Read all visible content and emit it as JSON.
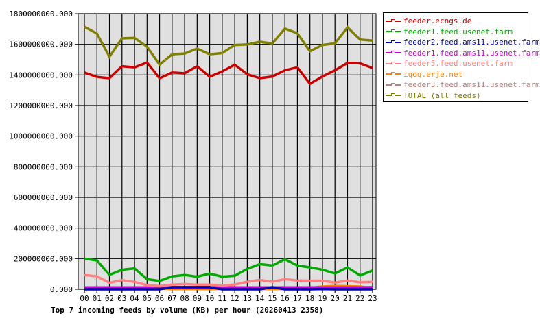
{
  "chart_data": {
    "type": "line",
    "title": "Top 7 incoming feeds by volume (KB) per hour (20260413 2358)",
    "xlabel": "",
    "ylabel": "",
    "ylim": [
      0,
      1800000000
    ],
    "grid": true,
    "legend_position": "right",
    "y_ticks": [
      "0.000",
      "200000000.000",
      "400000000.000",
      "600000000.000",
      "800000000.000",
      "1000000000.000",
      "1200000000.000",
      "1400000000.000",
      "1600000000.000",
      "1800000000.000"
    ],
    "categories": [
      "00",
      "01",
      "02",
      "03",
      "04",
      "05",
      "06",
      "07",
      "08",
      "09",
      "10",
      "11",
      "12",
      "13",
      "14",
      "15",
      "16",
      "17",
      "18",
      "19",
      "20",
      "21",
      "22",
      "23"
    ],
    "series": [
      {
        "name": "feeder.ecngs.de",
        "color": "#cc0000",
        "values": [
          1416000000,
          1387000000,
          1379000000,
          1457000000,
          1450000000,
          1481000000,
          1378000000,
          1416000000,
          1411000000,
          1457000000,
          1388000000,
          1423000000,
          1467000000,
          1404000000,
          1379000000,
          1390000000,
          1430000000,
          1450000000,
          1342000000,
          1390000000,
          1430000000,
          1479000000,
          1476000000,
          1445000000
        ]
      },
      {
        "name": "feeder1.feed.usenet.farm",
        "color": "#00aa00",
        "values": [
          200000000,
          188000000,
          94000000,
          127000000,
          136000000,
          66000000,
          54000000,
          84000000,
          93000000,
          82000000,
          102000000,
          82000000,
          88000000,
          133000000,
          164000000,
          155000000,
          196000000,
          155000000,
          143000000,
          128000000,
          103000000,
          143000000,
          90000000,
          122000000
        ]
      },
      {
        "name": "feeder2.feed.ams11.usenet.farm",
        "color": "#0000aa",
        "values": [
          0,
          0,
          0,
          0,
          0,
          0,
          0,
          14000000,
          14000000,
          14000000,
          14000000,
          0,
          0,
          0,
          0,
          14000000,
          0,
          0,
          0,
          2000000,
          0,
          0,
          0,
          0
        ]
      },
      {
        "name": "feeder1.feed.ams11.usenet.farm",
        "color": "#cc00cc",
        "values": [
          12000000,
          12000000,
          12000000,
          12000000,
          12000000,
          12000000,
          12000000,
          12000000,
          12000000,
          12000000,
          12000000,
          12000000,
          12000000,
          12000000,
          12000000,
          12000000,
          12000000,
          12000000,
          12000000,
          12000000,
          12000000,
          12000000,
          12000000,
          14000000
        ]
      },
      {
        "name": "feeder5.feed.usenet.farm",
        "color": "#ff8080",
        "values": [
          93000000,
          84000000,
          42000000,
          60000000,
          48000000,
          27000000,
          21000000,
          30000000,
          34000000,
          30000000,
          30000000,
          24000000,
          31000000,
          49000000,
          61000000,
          49000000,
          66000000,
          57000000,
          56000000,
          56000000,
          43000000,
          57000000,
          45000000,
          48000000
        ]
      },
      {
        "name": "iqoq.erje.net",
        "color": "#ff8000",
        "values": [
          2000000,
          2000000,
          2000000,
          2000000,
          2000000,
          4000000,
          4000000,
          2000000,
          2000000,
          2000000,
          2000000,
          2000000,
          2000000,
          2000000,
          2000000,
          2000000,
          2000000,
          2000000,
          10000000,
          18000000,
          22000000,
          20000000,
          18000000,
          8000000
        ]
      },
      {
        "name": "feeder3.feed.ams11.usenet.farm",
        "color": "#c08080",
        "values": [
          9000000,
          9000000,
          9000000,
          9000000,
          9000000,
          9000000,
          9000000,
          9000000,
          9000000,
          9000000,
          9000000,
          9000000,
          9000000,
          9000000,
          9000000,
          9000000,
          9000000,
          9000000,
          9000000,
          9000000,
          9000000,
          9000000,
          9000000,
          9000000
        ]
      },
      {
        "name": "TOTAL (all feeds)",
        "color": "#808000",
        "values": [
          1715000000,
          1670000000,
          1519000000,
          1639000000,
          1642000000,
          1584000000,
          1467000000,
          1535000000,
          1540000000,
          1572000000,
          1535000000,
          1543000000,
          1596000000,
          1599000000,
          1617000000,
          1605000000,
          1703000000,
          1672000000,
          1554000000,
          1596000000,
          1606000000,
          1711000000,
          1631000000,
          1624000000
        ]
      }
    ]
  },
  "legend": {
    "items": [
      {
        "label": "feeder.ecngs.de",
        "color": "#cc0000"
      },
      {
        "label": "feeder1.feed.usenet.farm",
        "color": "#00aa00"
      },
      {
        "label": "feeder2.feed.ams11.usenet.farm",
        "color": "#0000aa"
      },
      {
        "label": "feeder1.feed.ams11.usenet.farm",
        "color": "#cc00cc"
      },
      {
        "label": "feeder5.feed.usenet.farm",
        "color": "#ff8080"
      },
      {
        "label": "iqoq.erje.net",
        "color": "#ff8000"
      },
      {
        "label": "feeder3.feed.ams11.usenet.farm",
        "color": "#c08080"
      },
      {
        "label": "TOTAL (all feeds)",
        "color": "#808000"
      }
    ]
  }
}
